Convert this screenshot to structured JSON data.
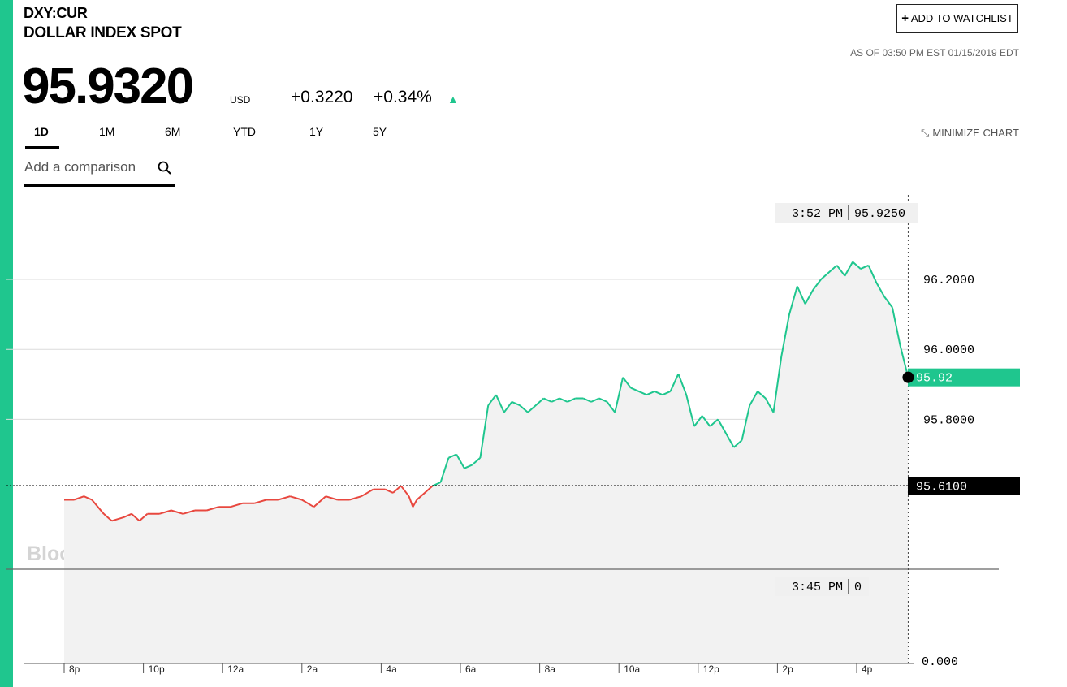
{
  "header": {
    "ticker": "DXY:CUR",
    "name": "DOLLAR INDEX SPOT",
    "price": "95.9320",
    "currency": "USD",
    "change": "+0.3220",
    "change_pct": "+0.34%",
    "watchlist_label": "ADD TO WATCHLIST",
    "as_of": "AS OF 03:50 PM EST 01/15/2019 EDT"
  },
  "tabs": [
    "1D",
    "1M",
    "6M",
    "YTD",
    "1Y",
    "5Y"
  ],
  "active_tab": "1D",
  "minimize_label": "MINIMIZE CHART",
  "compare_placeholder": "Add a comparison",
  "colors": {
    "accent": "#1fc68e",
    "down": "#e8483f",
    "up": "#1fc68e",
    "marker": "#000000"
  },
  "chart_data": {
    "type": "line",
    "watermark": "BloombergMarkets",
    "y_ticks": [
      "96.2000",
      "96.0000",
      "95.8000"
    ],
    "ylim": [
      95.4,
      96.4
    ],
    "previous_close": 95.61,
    "previous_close_label": "95.6100",
    "last_value_label": "95.92",
    "last_value": 95.92,
    "x_ticks": [
      "8p",
      "10p",
      "12a",
      "2a",
      "4a",
      "6a",
      "8a",
      "10a",
      "12p",
      "2p",
      "4p"
    ],
    "crosshair_time": "3:52 PM",
    "crosshair_value": "95.9250",
    "volume_time": "3:45 PM",
    "volume_value": "0",
    "volume_axis_label": "0.000",
    "series": [
      {
        "x": [
          -1.5,
          -1.25,
          -1.0,
          -0.8,
          -0.5,
          -0.3,
          0.0,
          0.2,
          0.4,
          0.6,
          0.9,
          1.2,
          1.5,
          1.8,
          2.1,
          2.4,
          2.7,
          3.0,
          3.3,
          3.6,
          3.9,
          4.2,
          4.5,
          4.8,
          5.1,
          5.4,
          5.7,
          6.0,
          6.3,
          6.6,
          6.8,
          7.0,
          7.2,
          7.3,
          7.4,
          7.6,
          7.8,
          8.0,
          8.2,
          8.4,
          8.6,
          8.8,
          9.0,
          9.2,
          9.4,
          9.6,
          9.8,
          10.0,
          10.2,
          10.4,
          10.6,
          10.8,
          11.0,
          11.2,
          11.4,
          11.6,
          11.8,
          12.0,
          12.2,
          12.4,
          12.6,
          12.8,
          13.0,
          13.2,
          13.4,
          13.6,
          13.8,
          14.0,
          14.2,
          14.4,
          14.6,
          14.8,
          15.0,
          15.2,
          15.4,
          15.6,
          15.8,
          16.0,
          16.2,
          16.4,
          16.6,
          16.8,
          17.0,
          17.2,
          17.4,
          17.6,
          17.8,
          18.0,
          18.2,
          18.4,
          18.6,
          18.8,
          19.0,
          19.2,
          19.4,
          19.6,
          19.8
        ],
        "y": [
          95.57,
          95.57,
          95.58,
          95.57,
          95.53,
          95.51,
          95.52,
          95.53,
          95.51,
          95.53,
          95.53,
          95.54,
          95.53,
          95.54,
          95.54,
          95.55,
          95.55,
          95.56,
          95.56,
          95.57,
          95.57,
          95.58,
          95.57,
          95.55,
          95.58,
          95.57,
          95.57,
          95.58,
          95.6,
          95.6,
          95.59,
          95.61,
          95.58,
          95.55,
          95.57,
          95.59,
          95.61,
          95.62,
          95.69,
          95.7,
          95.66,
          95.67,
          95.69,
          95.84,
          95.87,
          95.82,
          95.85,
          95.84,
          95.82,
          95.84,
          95.86,
          95.85,
          95.86,
          95.85,
          95.86,
          95.86,
          95.85,
          95.86,
          95.85,
          95.82,
          95.92,
          95.89,
          95.88,
          95.87,
          95.88,
          95.87,
          95.88,
          95.93,
          95.87,
          95.78,
          95.81,
          95.78,
          95.8,
          95.76,
          95.72,
          95.74,
          95.84,
          95.88,
          95.86,
          95.82,
          95.98,
          96.1,
          96.18,
          96.13,
          96.17,
          96.2,
          96.22,
          96.24,
          96.21,
          96.25,
          96.23,
          96.24,
          96.19,
          96.15,
          96.12,
          96.01,
          95.92
        ]
      }
    ]
  }
}
